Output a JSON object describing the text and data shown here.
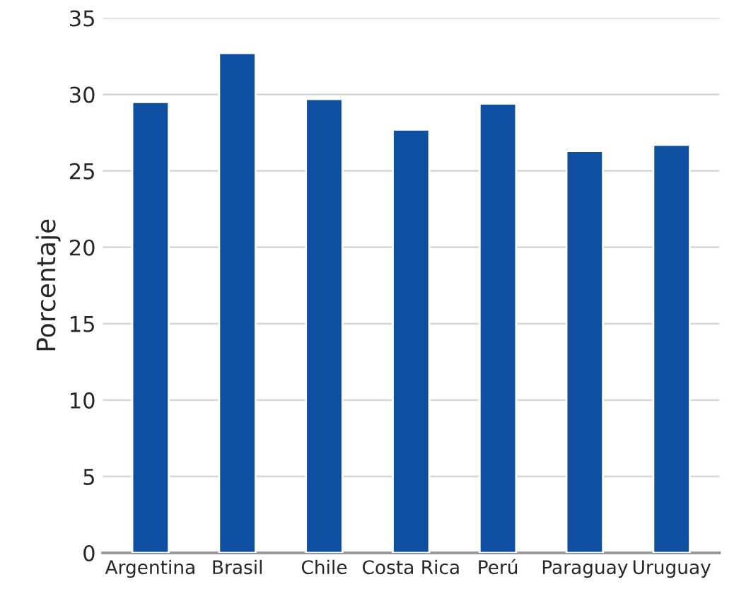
{
  "chart_data": {
    "type": "bar",
    "ylabel": "Porcentaje",
    "categories": [
      "Argentina",
      "Brasil",
      "Chile",
      "Costa Rica",
      "Perú",
      "Paraguay",
      "Uruguay"
    ],
    "values": [
      29.5,
      32.7,
      29.7,
      27.7,
      29.4,
      26.3,
      26.7
    ],
    "color": "#0f4fa2",
    "ylim": [
      0,
      35
    ],
    "yticks": [
      0,
      5,
      10,
      15,
      20,
      25,
      30,
      35
    ],
    "grid": "y",
    "legend": false
  }
}
